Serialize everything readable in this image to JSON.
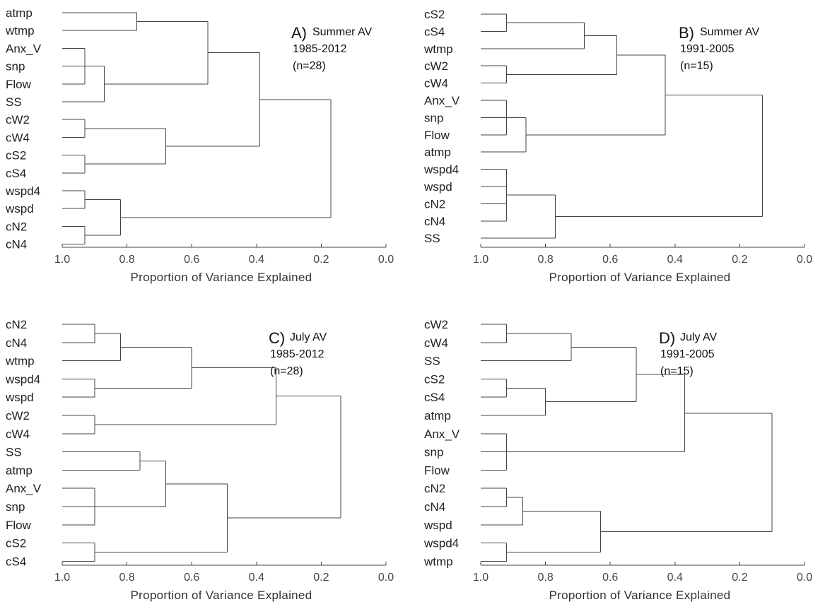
{
  "chart_data": [
    {
      "type": "dendrogram",
      "panel_letter": "A)",
      "panel_lines": [
        "Summer AV",
        "1985-2012",
        "(n=28)"
      ],
      "xlabel": "Proportion of Variance Explained",
      "xlim": [
        1.0,
        0.0
      ],
      "xticks": [
        "1.0",
        "0.8",
        "0.6",
        "0.4",
        "0.2",
        "0.0"
      ],
      "leaves": [
        "atmp",
        "wtmp",
        "Anx_V",
        "snp",
        "Flow",
        "SS",
        "cW2",
        "cW4",
        "cS2",
        "cS4",
        "wspd4",
        "wspd",
        "cN2",
        "cN4"
      ],
      "tree": {
        "h": 0.17,
        "c": [
          {
            "h": 0.39,
            "c": [
              {
                "h": 0.55,
                "c": [
                  {
                    "h": 0.77,
                    "c": [
                      "atmp",
                      "wtmp"
                    ]
                  },
                  {
                    "h": 0.87,
                    "c": [
                      {
                        "h": 0.93,
                        "c": [
                          "Anx_V",
                          "snp",
                          "Flow"
                        ]
                      },
                      "SS"
                    ]
                  }
                ]
              },
              {
                "h": 0.68,
                "c": [
                  {
                    "h": 0.93,
                    "c": [
                      "cW2",
                      "cW4"
                    ]
                  },
                  {
                    "h": 0.93,
                    "c": [
                      "cS2",
                      "cS4"
                    ]
                  }
                ]
              }
            ]
          },
          {
            "h": 0.82,
            "c": [
              {
                "h": 0.93,
                "c": [
                  "wspd4",
                  "wspd"
                ]
              },
              {
                "h": 0.93,
                "c": [
                  "cN2",
                  "cN4"
                ]
              }
            ]
          }
        ]
      }
    },
    {
      "type": "dendrogram",
      "panel_letter": "B)",
      "panel_lines": [
        "Summer AV",
        "1991-2005",
        "(n=15)"
      ],
      "xlabel": "Proportion of Variance Explained",
      "xlim": [
        1.0,
        0.0
      ],
      "xticks": [
        "1.0",
        "0.8",
        "0.6",
        "0.4",
        "0.2",
        "0.0"
      ],
      "leaves": [
        "cS2",
        "cS4",
        "wtmp",
        "cW2",
        "cW4",
        "Anx_V",
        "snp",
        "Flow",
        "atmp",
        "wspd4",
        "wspd",
        "cN2",
        "cN4",
        "SS"
      ],
      "tree": {
        "h": 0.13,
        "c": [
          {
            "h": 0.43,
            "c": [
              {
                "h": 0.58,
                "c": [
                  {
                    "h": 0.68,
                    "c": [
                      {
                        "h": 0.92,
                        "c": [
                          "cS2",
                          "cS4"
                        ]
                      },
                      "wtmp"
                    ]
                  },
                  {
                    "h": 0.92,
                    "c": [
                      "cW2",
                      "cW4"
                    ]
                  }
                ]
              },
              {
                "h": 0.86,
                "c": [
                  {
                    "h": 0.92,
                    "c": [
                      "Anx_V",
                      "snp",
                      "Flow"
                    ]
                  },
                  "atmp"
                ]
              }
            ]
          },
          {
            "h": 0.77,
            "c": [
              {
                "h": 0.92,
                "c": [
                  "wspd4",
                  "wspd",
                  "cN2",
                  "cN4"
                ]
              },
              "SS"
            ]
          }
        ]
      }
    },
    {
      "type": "dendrogram",
      "panel_letter": "C)",
      "panel_lines": [
        "July AV",
        "1985-2012",
        "(n=28)"
      ],
      "xlabel": "Proportion of Variance Explained",
      "xlim": [
        1.0,
        0.0
      ],
      "xticks": [
        "1.0",
        "0.8",
        "0.6",
        "0.4",
        "0.2",
        "0.0"
      ],
      "leaves": [
        "cN2",
        "cN4",
        "wtmp",
        "wspd4",
        "wspd",
        "cW2",
        "cW4",
        "SS",
        "atmp",
        "Anx_V",
        "snp",
        "Flow",
        "cS2",
        "cS4"
      ],
      "tree": {
        "h": 0.14,
        "c": [
          {
            "h": 0.34,
            "c": [
              {
                "h": 0.6,
                "c": [
                  {
                    "h": 0.82,
                    "c": [
                      {
                        "h": 0.9,
                        "c": [
                          "cN2",
                          "cN4"
                        ]
                      },
                      "wtmp"
                    ]
                  },
                  {
                    "h": 0.9,
                    "c": [
                      "wspd4",
                      "wspd"
                    ]
                  }
                ]
              },
              {
                "h": 0.9,
                "c": [
                  "cW2",
                  "cW4"
                ]
              }
            ]
          },
          {
            "h": 0.49,
            "c": [
              {
                "h": 0.68,
                "c": [
                  {
                    "h": 0.76,
                    "c": [
                      "SS",
                      "atmp"
                    ]
                  },
                  {
                    "h": 0.9,
                    "c": [
                      "Anx_V",
                      "snp",
                      "Flow"
                    ]
                  }
                ]
              },
              {
                "h": 0.9,
                "c": [
                  "cS2",
                  "cS4"
                ]
              }
            ]
          }
        ]
      }
    },
    {
      "type": "dendrogram",
      "panel_letter": "D)",
      "panel_lines": [
        "July AV",
        "1991-2005",
        "(n=15)"
      ],
      "xlabel": "Proportion of Variance Explained",
      "xlim": [
        1.0,
        0.0
      ],
      "xticks": [
        "1.0",
        "0.8",
        "0.6",
        "0.4",
        "0.2",
        "0.0"
      ],
      "leaves": [
        "cW2",
        "cW4",
        "SS",
        "cS2",
        "cS4",
        "atmp",
        "Anx_V",
        "snp",
        "Flow",
        "cN2",
        "cN4",
        "wspd",
        "wspd4",
        "wtmp"
      ],
      "tree": {
        "h": 0.1,
        "c": [
          {
            "h": 0.37,
            "c": [
              {
                "h": 0.52,
                "c": [
                  {
                    "h": 0.72,
                    "c": [
                      {
                        "h": 0.92,
                        "c": [
                          "cW2",
                          "cW4"
                        ]
                      },
                      "SS"
                    ]
                  },
                  {
                    "h": 0.8,
                    "c": [
                      {
                        "h": 0.92,
                        "c": [
                          "cS2",
                          "cS4"
                        ]
                      },
                      "atmp"
                    ]
                  }
                ]
              },
              {
                "h": 0.92,
                "c": [
                  "Anx_V",
                  "snp",
                  "Flow"
                ]
              }
            ]
          },
          {
            "h": 0.63,
            "c": [
              {
                "h": 0.87,
                "c": [
                  {
                    "h": 0.92,
                    "c": [
                      "cN2",
                      "cN4"
                    ]
                  },
                  "wspd"
                ]
              },
              {
                "h": 0.92,
                "c": [
                  "wspd4",
                  "wtmp"
                ]
              }
            ]
          }
        ]
      }
    }
  ]
}
